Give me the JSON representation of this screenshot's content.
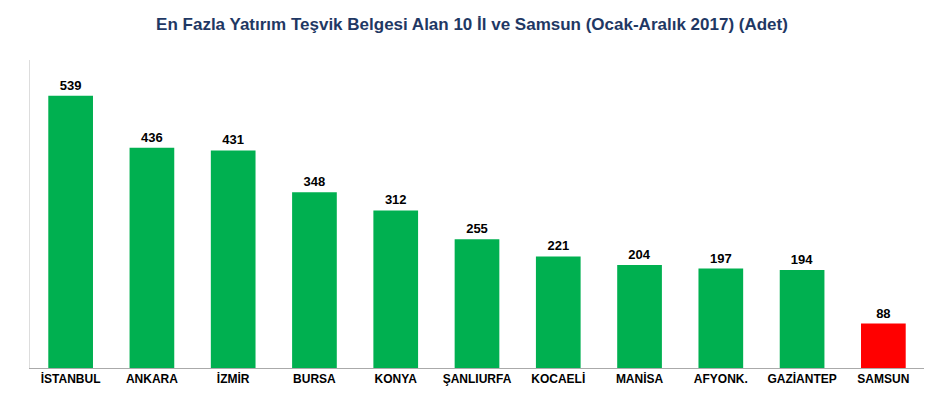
{
  "chart_data": {
    "type": "bar",
    "title": "En Fazla Yatırım Teşvik Belgesi Alan 10 İl ve Samsun (Ocak-Aralık 2017) (Adet)",
    "categories": [
      "İSTANBUL",
      "ANKARA",
      "İZMİR",
      "BURSA",
      "KONYA",
      "ŞANLIURFA",
      "KOCAELİ",
      "MANİSA",
      "AFYONK.",
      "GAZİANTEP",
      "SAMSUN"
    ],
    "values": [
      539,
      436,
      431,
      348,
      312,
      255,
      221,
      204,
      197,
      194,
      88
    ],
    "colors": [
      "#00b050",
      "#00b050",
      "#00b050",
      "#00b050",
      "#00b050",
      "#00b050",
      "#00b050",
      "#00b050",
      "#00b050",
      "#00b050",
      "#ff0000"
    ],
    "ylim": [
      0,
      610
    ],
    "data_labels": true,
    "tick_labels": "x",
    "grid": false
  }
}
